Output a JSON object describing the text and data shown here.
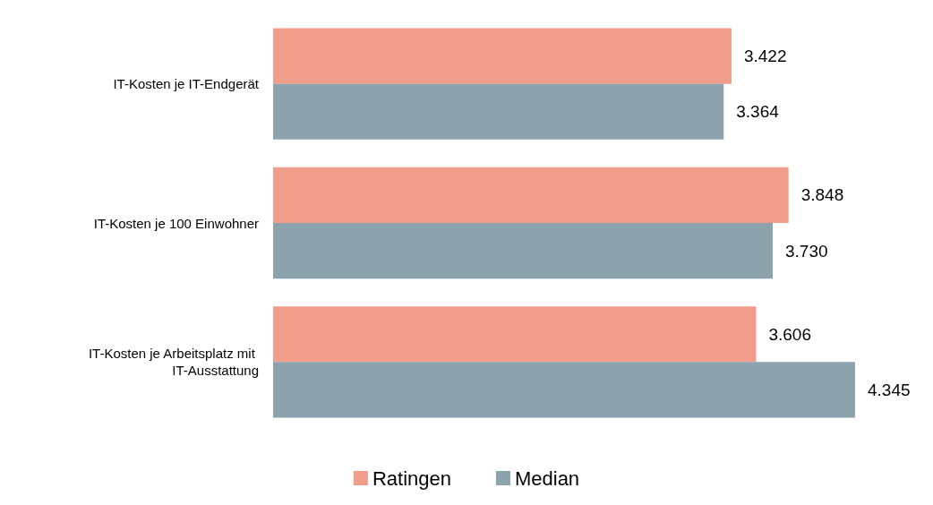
{
  "chart_data": {
    "type": "bar",
    "orientation": "horizontal",
    "categories": [
      "IT-Kosten je IT-Endgerät",
      "IT-Kosten je 100 Einwohner",
      "IT-Kosten je Arbeitsplatz mit IT-Ausstattung"
    ],
    "series": [
      {
        "name": "Ratingen",
        "color": "#f19d8b",
        "values": [
          3422,
          3848,
          3606
        ],
        "value_labels": [
          "3.422",
          "3.848",
          "3.606"
        ]
      },
      {
        "name": "Median",
        "color": "#8ca3ae",
        "values": [
          3364,
          3730,
          4345
        ],
        "value_labels": [
          "3.364",
          "3.730",
          "4.345"
        ]
      }
    ],
    "legend": "bottom",
    "grid": false,
    "tick_labels": "y"
  }
}
